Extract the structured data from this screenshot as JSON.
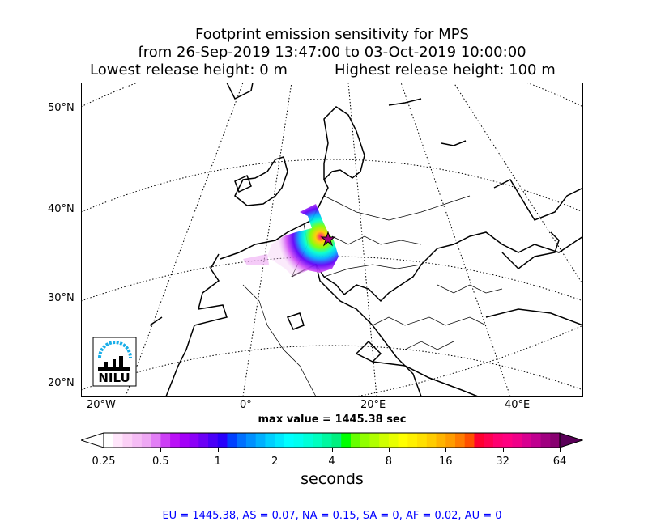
{
  "title": {
    "line1": "Footprint emission sensitivity for MPS",
    "line2": "from 26-Sep-2019 13:47:00 to 03-Oct-2019 10:00:00",
    "line3_left": "Lowest release height: 0 m",
    "line3_right": "Highest release height: 100 m"
  },
  "lat_labels": [
    "50°N",
    "40°N",
    "30°N",
    "20°N"
  ],
  "lon_labels": [
    "20°W",
    "0°",
    "20°E",
    "40°E"
  ],
  "logo_text": "NILU",
  "max_value": "max value = 1445.38 sec",
  "colorbar": {
    "ticks": [
      "0.25",
      "0.5",
      "1",
      "2",
      "4",
      "8",
      "16",
      "32",
      "64"
    ],
    "unit": "seconds",
    "colors": [
      "#ffffff",
      "#ffe6fb",
      "#fbd0f6",
      "#f5bcf5",
      "#eea8f4",
      "#e27ef6",
      "#cc3ff5",
      "#bb10f7",
      "#a400f8",
      "#8c00f7",
      "#6c00f6",
      "#4a00f8",
      "#2800fb",
      "#0040ff",
      "#0070ff",
      "#0090ff",
      "#00b0ff",
      "#00cfff",
      "#00e8ff",
      "#00ffff",
      "#00fff0",
      "#00ffd8",
      "#00ffbf",
      "#00f8a0",
      "#00f080",
      "#00ff00",
      "#66ff00",
      "#90ff00",
      "#b0ff00",
      "#d0ff00",
      "#e8ff00",
      "#ffff00",
      "#fff000",
      "#ffe000",
      "#ffcc00",
      "#ffb400",
      "#ff9c00",
      "#ff7c00",
      "#ff5000",
      "#ff0030",
      "#ff0050",
      "#ff0070",
      "#ff0080",
      "#f00088",
      "#d80090",
      "#c00090",
      "#a00080",
      "#880070"
    ],
    "over_color": "#5a0058"
  },
  "footer": "EU = 1445.38,  AS = 0.07,  NA = 0.15,  SA = 0,  AF = 0.02,  AU = 0"
}
